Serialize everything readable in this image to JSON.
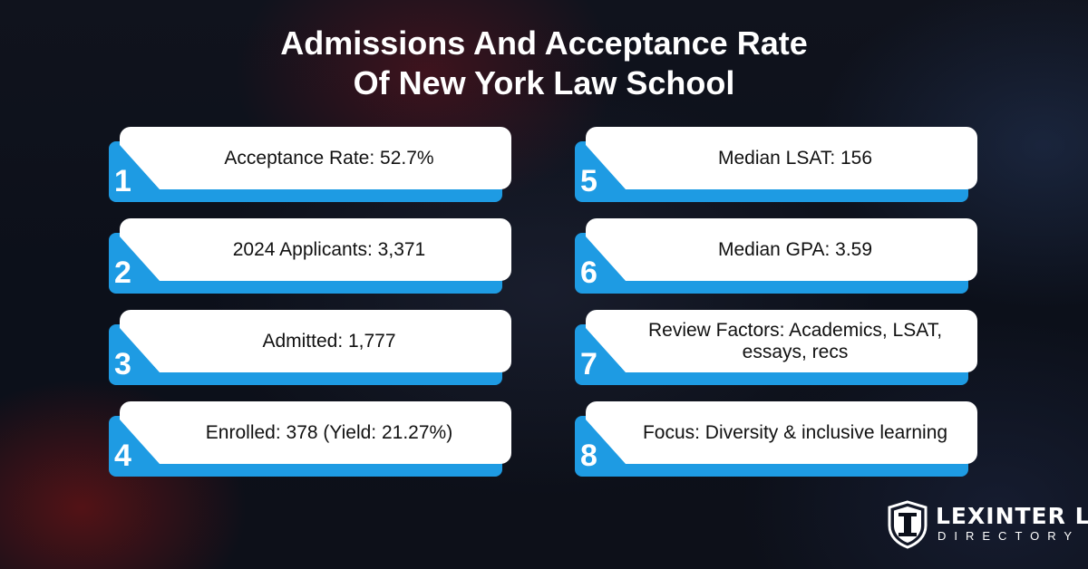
{
  "title": {
    "line1": "Admissions And Acceptance Rate",
    "line2": "Of New York Law School"
  },
  "cards": [
    {
      "number": "1",
      "text": "Acceptance Rate: 52.7%"
    },
    {
      "number": "2",
      "text": "2024 Applicants: 3,371"
    },
    {
      "number": "3",
      "text": "Admitted: 1,777"
    },
    {
      "number": "4",
      "text": "Enrolled: 378 (Yield: 21.27%)"
    },
    {
      "number": "5",
      "text": "Median LSAT: 156"
    },
    {
      "number": "6",
      "text": "Median GPA: 3.59"
    },
    {
      "number": "7",
      "text": "Review Factors: Academics, LSAT, essays, recs"
    },
    {
      "number": "8",
      "text": "Focus: Diversity & inclusive learning"
    }
  ],
  "logo": {
    "icon": "shield-pillar-icon",
    "line1": "LEXINTER LAW",
    "line2": "DIRECTORY"
  },
  "colors": {
    "accent": "#1e9be3",
    "card": "#ffffff",
    "text": "#111111",
    "background": "#0b0f1a"
  }
}
